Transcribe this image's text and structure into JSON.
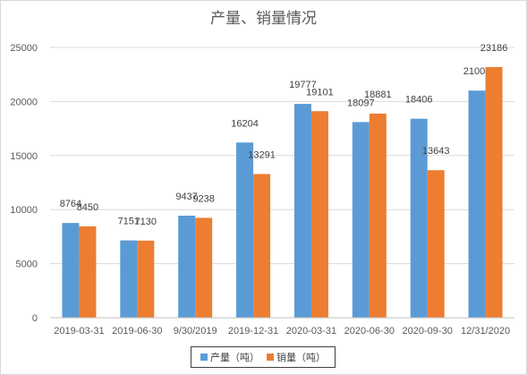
{
  "chart_data": {
    "type": "bar",
    "title": "产量、销量情况",
    "categories": [
      "2019-03-31",
      "2019-06-30",
      "9/30/2019",
      "2019-12-31",
      "2020-03-31",
      "2020-06-30",
      "2020-09-30",
      "12/31/2020"
    ],
    "series": [
      {
        "name": "产量（吨）",
        "color": "#5b9bd5",
        "values": [
          8764,
          7151,
          9437,
          16204,
          19777,
          18097,
          18406,
          21008
        ]
      },
      {
        "name": "销量（吨）",
        "color": "#ed7d31",
        "values": [
          8450,
          7130,
          9238,
          13291,
          19101,
          18881,
          13643,
          23186
        ]
      }
    ],
    "ylim": [
      0,
      25000
    ],
    "yticks": [
      0,
      5000,
      10000,
      15000,
      20000,
      25000
    ],
    "grid": true,
    "legend_position": "bottom"
  }
}
